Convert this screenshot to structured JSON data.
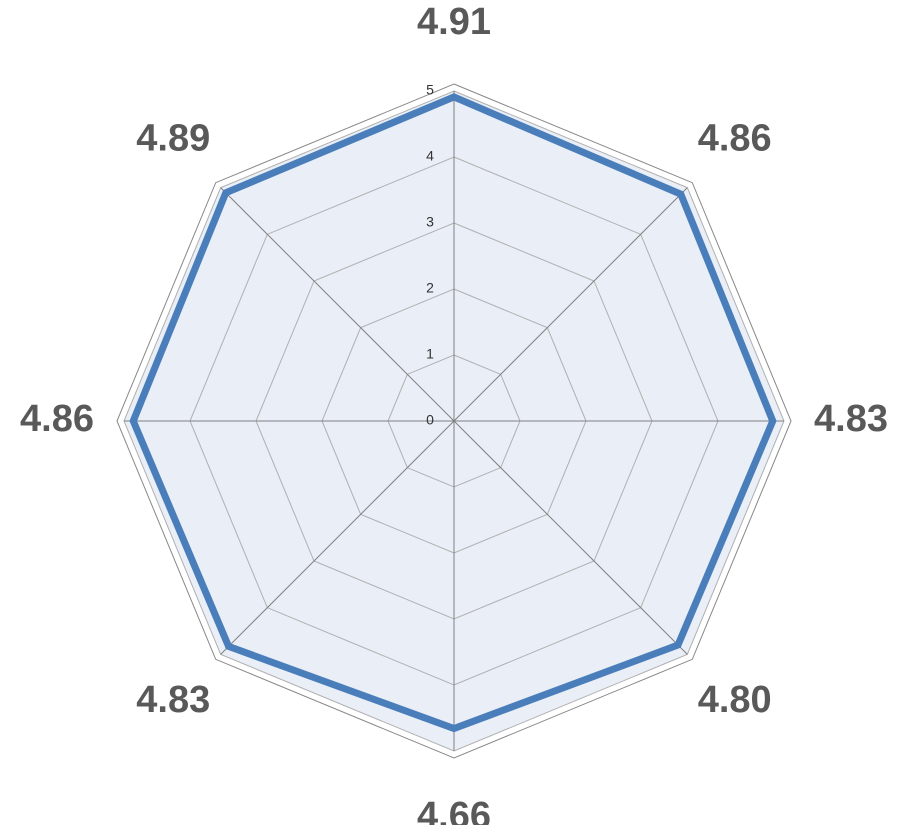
{
  "chart_data": {
    "type": "radar",
    "values": [
      4.91,
      4.86,
      4.83,
      4.8,
      4.66,
      4.83,
      4.86,
      4.89
    ],
    "value_labels": [
      "4.91",
      "4.86",
      "4.83",
      "4.80",
      "4.66",
      "4.83",
      "4.86",
      "4.89"
    ],
    "color": "#4a7ebb",
    "rlim": [
      0,
      5
    ],
    "rticks": [
      0,
      1,
      2,
      3,
      4,
      5
    ],
    "grid": true
  }
}
